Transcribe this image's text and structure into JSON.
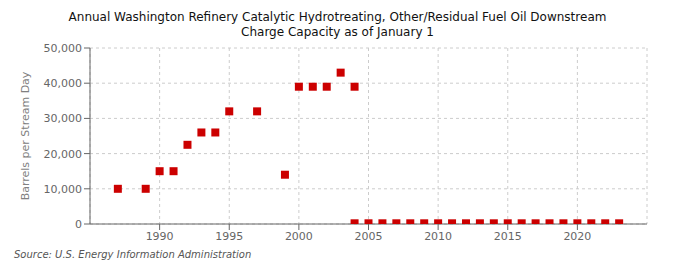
{
  "chart_data": {
    "type": "scatter",
    "title": "Annual Washington Refinery Catalytic Hydrotreating, Other/Residual Fuel Oil Downstream\nCharge Capacity as of January 1",
    "ylabel": "Barrels per Stream Day",
    "annotations": [
      "Source: U.S. Energy Information Administration"
    ],
    "series": [
      {
        "color": "#cc0000",
        "marker": "square",
        "x": [
          1987,
          1989,
          1990,
          1991,
          1992,
          1993,
          1994,
          1995,
          1997,
          1999,
          2000,
          2001,
          2002,
          2003,
          2004
        ],
        "values": [
          10000,
          10000,
          15000,
          15000,
          22500,
          26000,
          26000,
          32000,
          32000,
          14000,
          39000,
          39000,
          39000,
          43000,
          39000
        ]
      },
      {
        "color": "#cc0000",
        "marker": "square",
        "x": [
          2004,
          2005,
          2006,
          2007,
          2008,
          2009,
          2010,
          2011,
          2012,
          2013,
          2014,
          2015,
          2016,
          2017,
          2018,
          2019,
          2020,
          2021,
          2022,
          2023
        ],
        "values": [
          200,
          200,
          200,
          200,
          200,
          200,
          200,
          200,
          200,
          200,
          200,
          200,
          200,
          200,
          200,
          200,
          200,
          200,
          200,
          200
        ]
      }
    ],
    "xlim": [
      1985,
      2025
    ],
    "ylim": [
      0,
      50000
    ],
    "xticks": [
      1990,
      1995,
      2000,
      2005,
      2010,
      2015,
      2020
    ],
    "yticks": [
      0,
      {
        "value": 10000,
        "label": "10,000"
      },
      {
        "value": 20000,
        "label": "20,000"
      },
      {
        "value": 30000,
        "label": "30,000"
      },
      {
        "value": 40000,
        "label": "40,000"
      },
      {
        "value": 50000,
        "label": "50,000"
      }
    ],
    "grid": true
  }
}
